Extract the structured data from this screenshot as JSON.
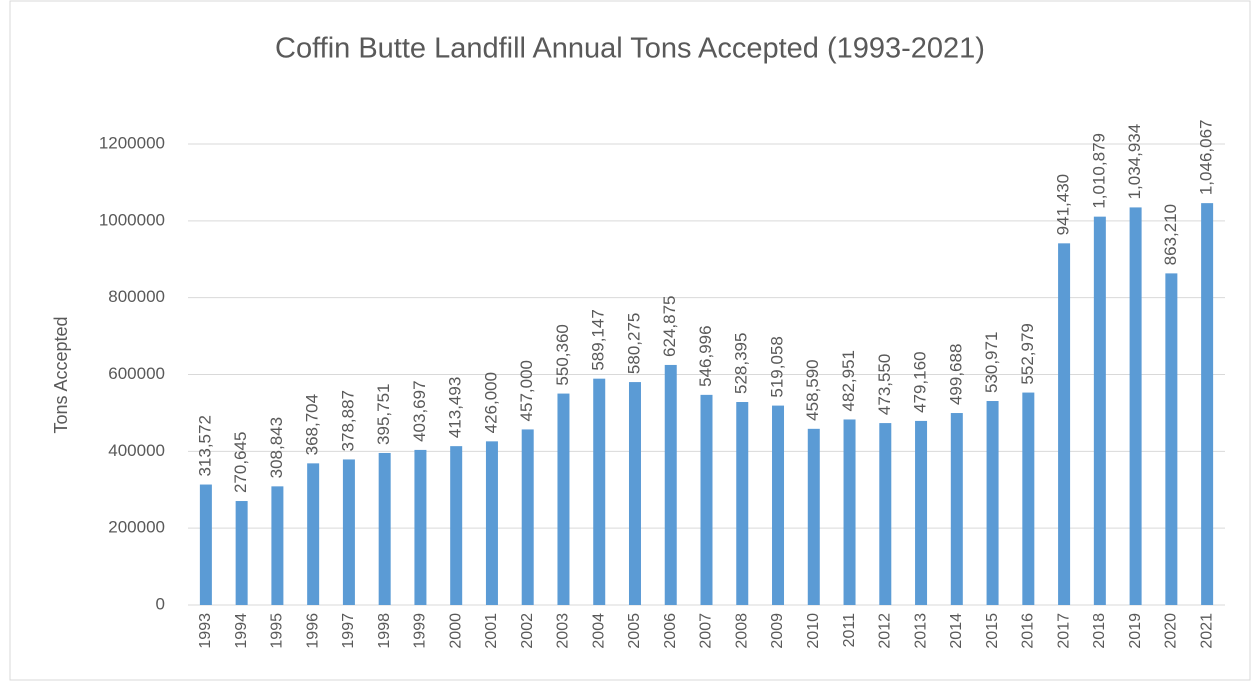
{
  "chart_data": {
    "type": "bar",
    "title": "Coffin Butte Landfill Annual Tons Accepted (1993-2021)",
    "y_label": "Tons Accepted",
    "categories": [
      "1993",
      "1994",
      "1995",
      "1996",
      "1997",
      "1998",
      "1999",
      "2000",
      "2001",
      "2002",
      "2003",
      "2004",
      "2005",
      "2006",
      "2007",
      "2008",
      "2009",
      "2010",
      "2011",
      "2012",
      "2013",
      "2014",
      "2015",
      "2016",
      "2017",
      "2018",
      "2019",
      "2020",
      "2021"
    ],
    "values": [
      313572,
      270645,
      308843,
      368704,
      378887,
      395751,
      403697,
      413493,
      426000,
      457000,
      550360,
      589147,
      580275,
      624875,
      546996,
      528395,
      519058,
      458590,
      482951,
      473550,
      479160,
      499688,
      530971,
      552979,
      941430,
      1010879,
      1034934,
      863210,
      1046067
    ],
    "value_labels": [
      "313,572",
      "270,645",
      "308,843",
      "368,704",
      "378,887",
      "395,751",
      "403,697",
      "413,493",
      "426,000",
      "457,000",
      "550,360",
      "589,147",
      "580,275",
      "624,875",
      "546,996",
      "528,395",
      "519,058",
      "458,590",
      "482,951",
      "473,550",
      "479,160",
      "499,688",
      "530,971",
      "552,979",
      "941,430",
      "1,010,879",
      "1,034,934",
      "863,210",
      "1,046,067"
    ],
    "color": "#5b9bd5",
    "ylim": [
      0,
      1200000
    ],
    "yticks": [
      0,
      200000,
      400000,
      600000,
      800000,
      1000000,
      1200000
    ],
    "grid": true
  }
}
